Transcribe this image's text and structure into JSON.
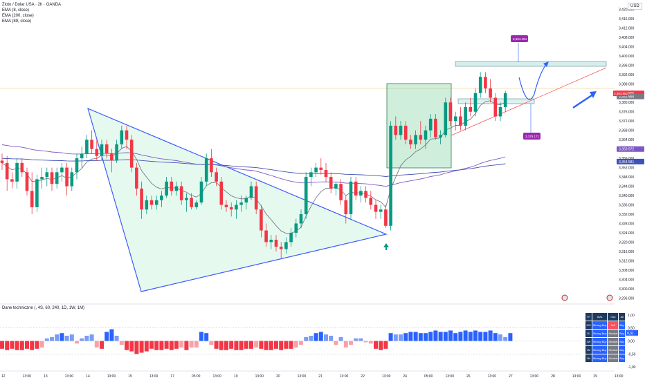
{
  "header": {
    "title": "Zloto / Dolar USA · 2h · OANDA",
    "ema_lines": [
      "EMA (8, close)",
      "EMA (200, close)",
      "EMA (89, close)"
    ],
    "currency": "USD",
    "indicator_title": "Dane techniczne (, 4S, 60, 240, 1D, 1W, 1M)"
  },
  "table": {
    "headers": [
      "TF",
      "Avts",
      "Osc",
      "All"
    ],
    "rows": [
      {
        "tf": "120",
        "ma": "Strong Buy",
        "osc": "Sell",
        "all": "Buy"
      },
      {
        "tf": "1D",
        "ma": "Strong Buy",
        "osc": "Neutral",
        "all": "Buy"
      },
      {
        "tf": "1W",
        "ma": "Strong Buy",
        "osc": "Neutral",
        "all": "Buy"
      },
      {
        "tf": "1M",
        "ma": "Strong Buy",
        "osc": "Neutral",
        "all": "Buy"
      },
      {
        "tf": "1M",
        "ma": "Strong Buy",
        "osc": "Neutral",
        "all": "Buy"
      }
    ]
  },
  "chart_data": {
    "type": "candlestick",
    "price_axis": {
      "ticks": [
        "3,420.000",
        "3,416.000",
        "3,412.000",
        "3,408.000",
        "3,404.000",
        "3,400.000",
        "3,396.000",
        "3,392.000",
        "3,388.000",
        "3,384.000",
        "3,380.000",
        "3,376.000",
        "3,372.000",
        "3,368.000",
        "3,364.000",
        "3,360.000",
        "3,356.000",
        "3,352.000",
        "3,348.000",
        "3,344.000",
        "3,340.000",
        "3,336.000",
        "3,332.000",
        "3,328.000",
        "3,324.000",
        "3,320.000",
        "3,316.000",
        "3,312.000",
        "3,308.000",
        "3,304.000",
        "3,300.000",
        "3,296.000"
      ],
      "range": [
        3294,
        3424
      ]
    },
    "labels": {
      "current": "3,383.905",
      "countdown": "01:35:02",
      "bid": "3,383.952",
      "ema8": "3,382.566",
      "ema89": "3,359.972",
      "ema200": "3,354.581",
      "target_high": "3,394.494",
      "target_low": "3,379.171"
    },
    "x_ticks": [
      "12",
      "13:00",
      "13",
      "13:00",
      "14",
      "13:00",
      "15",
      "13:00",
      "17",
      "05:00",
      "13:00",
      "19",
      "13:00",
      "20",
      "13:00",
      "21",
      "13:00",
      "22",
      "13:00",
      "24",
      "05:00",
      "13:00",
      "26",
      "13:00",
      "27",
      "13:00",
      "28",
      "13:00",
      "29",
      "13:00"
    ],
    "candles": [
      {
        "o": 3355,
        "h": 3358,
        "l": 3351,
        "c": 3354
      },
      {
        "o": 3354,
        "h": 3357,
        "l": 3342,
        "c": 3347
      },
      {
        "o": 3347,
        "h": 3350,
        "l": 3343,
        "c": 3346
      },
      {
        "o": 3346,
        "h": 3356,
        "l": 3343,
        "c": 3354
      },
      {
        "o": 3354,
        "h": 3356,
        "l": 3348,
        "c": 3350
      },
      {
        "o": 3350,
        "h": 3352,
        "l": 3340,
        "c": 3342
      },
      {
        "o": 3342,
        "h": 3350,
        "l": 3332,
        "c": 3335
      },
      {
        "o": 3335,
        "h": 3349,
        "l": 3333,
        "c": 3347
      },
      {
        "o": 3347,
        "h": 3352,
        "l": 3343,
        "c": 3348
      },
      {
        "o": 3348,
        "h": 3352,
        "l": 3344,
        "c": 3350
      },
      {
        "o": 3350,
        "h": 3352,
        "l": 3342,
        "c": 3345
      },
      {
        "o": 3345,
        "h": 3352,
        "l": 3343,
        "c": 3350
      },
      {
        "o": 3350,
        "h": 3354,
        "l": 3346,
        "c": 3352
      },
      {
        "o": 3352,
        "h": 3354,
        "l": 3340,
        "c": 3344
      },
      {
        "o": 3344,
        "h": 3352,
        "l": 3342,
        "c": 3350
      },
      {
        "o": 3350,
        "h": 3358,
        "l": 3347,
        "c": 3356
      },
      {
        "o": 3356,
        "h": 3361,
        "l": 3352,
        "c": 3358
      },
      {
        "o": 3358,
        "h": 3366,
        "l": 3356,
        "c": 3364
      },
      {
        "o": 3364,
        "h": 3368,
        "l": 3358,
        "c": 3360
      },
      {
        "o": 3360,
        "h": 3364,
        "l": 3355,
        "c": 3357
      },
      {
        "o": 3357,
        "h": 3364,
        "l": 3355,
        "c": 3362
      },
      {
        "o": 3362,
        "h": 3364,
        "l": 3356,
        "c": 3358
      },
      {
        "o": 3358,
        "h": 3360,
        "l": 3350,
        "c": 3355
      },
      {
        "o": 3355,
        "h": 3364,
        "l": 3354,
        "c": 3362
      },
      {
        "o": 3362,
        "h": 3370,
        "l": 3360,
        "c": 3368
      },
      {
        "o": 3368,
        "h": 3370,
        "l": 3360,
        "c": 3364
      },
      {
        "o": 3364,
        "h": 3366,
        "l": 3350,
        "c": 3352
      },
      {
        "o": 3352,
        "h": 3354,
        "l": 3340,
        "c": 3343
      },
      {
        "o": 3343,
        "h": 3346,
        "l": 3330,
        "c": 3334
      },
      {
        "o": 3334,
        "h": 3340,
        "l": 3332,
        "c": 3338
      },
      {
        "o": 3338,
        "h": 3340,
        "l": 3334,
        "c": 3336
      },
      {
        "o": 3336,
        "h": 3340,
        "l": 3334,
        "c": 3338
      },
      {
        "o": 3338,
        "h": 3342,
        "l": 3335,
        "c": 3340
      },
      {
        "o": 3340,
        "h": 3348,
        "l": 3339,
        "c": 3346
      },
      {
        "o": 3346,
        "h": 3348,
        "l": 3340,
        "c": 3342
      },
      {
        "o": 3342,
        "h": 3346,
        "l": 3340,
        "c": 3344
      },
      {
        "o": 3344,
        "h": 3346,
        "l": 3336,
        "c": 3338
      },
      {
        "o": 3338,
        "h": 3341,
        "l": 3333,
        "c": 3339
      },
      {
        "o": 3339,
        "h": 3341,
        "l": 3334,
        "c": 3335
      },
      {
        "o": 3335,
        "h": 3338,
        "l": 3334,
        "c": 3337
      },
      {
        "o": 3337,
        "h": 3348,
        "l": 3336,
        "c": 3346
      },
      {
        "o": 3346,
        "h": 3358,
        "l": 3344,
        "c": 3356
      },
      {
        "o": 3356,
        "h": 3360,
        "l": 3348,
        "c": 3350
      },
      {
        "o": 3350,
        "h": 3352,
        "l": 3344,
        "c": 3346
      },
      {
        "o": 3346,
        "h": 3348,
        "l": 3334,
        "c": 3336
      },
      {
        "o": 3336,
        "h": 3338,
        "l": 3333,
        "c": 3335
      },
      {
        "o": 3335,
        "h": 3337,
        "l": 3331,
        "c": 3334
      },
      {
        "o": 3334,
        "h": 3338,
        "l": 3330,
        "c": 3336
      },
      {
        "o": 3336,
        "h": 3340,
        "l": 3333,
        "c": 3337
      },
      {
        "o": 3337,
        "h": 3340,
        "l": 3334,
        "c": 3339
      },
      {
        "o": 3339,
        "h": 3346,
        "l": 3338,
        "c": 3344
      },
      {
        "o": 3344,
        "h": 3346,
        "l": 3332,
        "c": 3334
      },
      {
        "o": 3334,
        "h": 3336,
        "l": 3322,
        "c": 3325
      },
      {
        "o": 3325,
        "h": 3328,
        "l": 3318,
        "c": 3320
      },
      {
        "o": 3320,
        "h": 3323,
        "l": 3317,
        "c": 3321
      },
      {
        "o": 3321,
        "h": 3323,
        "l": 3316,
        "c": 3318
      },
      {
        "o": 3318,
        "h": 3320,
        "l": 3313,
        "c": 3317
      },
      {
        "o": 3317,
        "h": 3322,
        "l": 3315,
        "c": 3320
      },
      {
        "o": 3320,
        "h": 3326,
        "l": 3318,
        "c": 3324
      },
      {
        "o": 3324,
        "h": 3330,
        "l": 3322,
        "c": 3328
      },
      {
        "o": 3328,
        "h": 3334,
        "l": 3326,
        "c": 3332
      },
      {
        "o": 3332,
        "h": 3350,
        "l": 3330,
        "c": 3348
      },
      {
        "o": 3348,
        "h": 3352,
        "l": 3344,
        "c": 3350
      },
      {
        "o": 3350,
        "h": 3354,
        "l": 3348,
        "c": 3352
      },
      {
        "o": 3352,
        "h": 3356,
        "l": 3349,
        "c": 3351
      },
      {
        "o": 3351,
        "h": 3354,
        "l": 3346,
        "c": 3348
      },
      {
        "o": 3348,
        "h": 3350,
        "l": 3341,
        "c": 3343
      },
      {
        "o": 3343,
        "h": 3346,
        "l": 3340,
        "c": 3345
      },
      {
        "o": 3345,
        "h": 3347,
        "l": 3336,
        "c": 3338
      },
      {
        "o": 3338,
        "h": 3340,
        "l": 3328,
        "c": 3332
      },
      {
        "o": 3332,
        "h": 3348,
        "l": 3330,
        "c": 3346
      },
      {
        "o": 3346,
        "h": 3348,
        "l": 3338,
        "c": 3340
      },
      {
        "o": 3340,
        "h": 3344,
        "l": 3337,
        "c": 3342
      },
      {
        "o": 3342,
        "h": 3344,
        "l": 3337,
        "c": 3339
      },
      {
        "o": 3339,
        "h": 3342,
        "l": 3334,
        "c": 3336
      },
      {
        "o": 3336,
        "h": 3338,
        "l": 3330,
        "c": 3333
      },
      {
        "o": 3333,
        "h": 3336,
        "l": 3330,
        "c": 3334
      },
      {
        "o": 3334,
        "h": 3336,
        "l": 3326,
        "c": 3327
      },
      {
        "o": 3327,
        "h": 3372,
        "l": 3325,
        "c": 3370
      },
      {
        "o": 3370,
        "h": 3374,
        "l": 3364,
        "c": 3366
      },
      {
        "o": 3366,
        "h": 3372,
        "l": 3364,
        "c": 3370
      },
      {
        "o": 3370,
        "h": 3372,
        "l": 3362,
        "c": 3364
      },
      {
        "o": 3364,
        "h": 3366,
        "l": 3360,
        "c": 3362
      },
      {
        "o": 3362,
        "h": 3368,
        "l": 3360,
        "c": 3366
      },
      {
        "o": 3366,
        "h": 3372,
        "l": 3362,
        "c": 3364
      },
      {
        "o": 3364,
        "h": 3370,
        "l": 3360,
        "c": 3368
      },
      {
        "o": 3368,
        "h": 3375,
        "l": 3365,
        "c": 3373
      },
      {
        "o": 3373,
        "h": 3375,
        "l": 3364,
        "c": 3365
      },
      {
        "o": 3365,
        "h": 3368,
        "l": 3362,
        "c": 3366
      },
      {
        "o": 3366,
        "h": 3382,
        "l": 3365,
        "c": 3380
      },
      {
        "o": 3380,
        "h": 3382,
        "l": 3370,
        "c": 3372
      },
      {
        "o": 3372,
        "h": 3376,
        "l": 3368,
        "c": 3374
      },
      {
        "o": 3374,
        "h": 3378,
        "l": 3368,
        "c": 3370
      },
      {
        "o": 3370,
        "h": 3380,
        "l": 3368,
        "c": 3378
      },
      {
        "o": 3378,
        "h": 3382,
        "l": 3374,
        "c": 3376
      },
      {
        "o": 3376,
        "h": 3386,
        "l": 3374,
        "c": 3384
      },
      {
        "o": 3384,
        "h": 3393,
        "l": 3382,
        "c": 3391
      },
      {
        "o": 3391,
        "h": 3393,
        "l": 3384,
        "c": 3386
      },
      {
        "o": 3386,
        "h": 3390,
        "l": 3380,
        "c": 3382
      },
      {
        "o": 3382,
        "h": 3384,
        "l": 3372,
        "c": 3374
      },
      {
        "o": 3374,
        "h": 3380,
        "l": 3372,
        "c": 3378
      },
      {
        "o": 3378,
        "h": 3385,
        "l": 3376,
        "c": 3384
      }
    ],
    "oscillator": {
      "range": [
        -1.1,
        1.1
      ],
      "ticks": [
        "1,00",
        "0,50",
        "0,00",
        "-0,50",
        "-1,00"
      ],
      "label": "0,31",
      "values": [
        -0.3,
        -0.35,
        -0.3,
        -0.35,
        -0.35,
        -0.3,
        -0.35,
        -0.3,
        -0.25,
        0.1,
        0.15,
        0.25,
        0.3,
        0.2,
        0.25,
        -0.1,
        0.1,
        0.2,
        0.25,
        -0.25,
        -0.3,
        0.35,
        0.45,
        0.2,
        -0.15,
        -0.35,
        -0.4,
        -0.5,
        -0.45,
        -0.4,
        -0.3,
        -0.35,
        -0.35,
        -0.3,
        -0.35,
        -0.3,
        -0.25,
        -0.35,
        -0.25,
        -0.25,
        0.35,
        0.3,
        -0.15,
        -0.3,
        -0.35,
        -0.35,
        -0.3,
        -0.35,
        -0.35,
        -0.3,
        -0.3,
        -0.25,
        -0.3,
        -0.35,
        -0.35,
        -0.3,
        -0.35,
        -0.3,
        -0.3,
        -0.25,
        -0.15,
        0.15,
        0.2,
        0.3,
        0.35,
        0.25,
        0.2,
        -0.15,
        0.15,
        -0.25,
        -0.15,
        0.1,
        0.1,
        -0.05,
        -0.1,
        -0.3,
        -0.35,
        -0.3,
        0.3,
        0.25,
        0.25,
        0.3,
        0.35,
        0.35,
        0.3,
        0.3,
        0.35,
        0.4,
        0.35,
        0.35,
        0.4,
        0.3,
        0.35,
        0.4,
        0.35,
        0.4,
        0.35,
        0.35,
        0.4,
        0.3,
        0.25,
        0.15,
        0.3
      ]
    }
  }
}
